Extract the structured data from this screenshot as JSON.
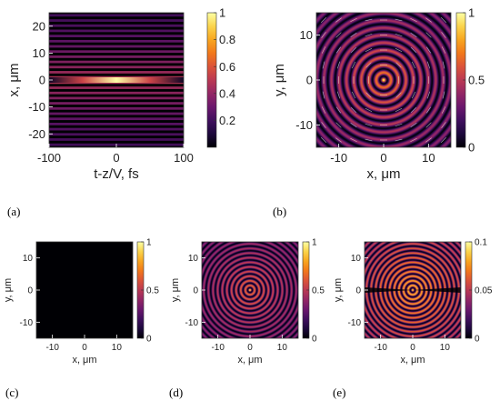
{
  "chart_data": [
    {
      "panel": "(a)",
      "type": "heatmap",
      "xlabel": "t-z/V, fs",
      "ylabel": "x, μm",
      "xlim": [
        -100,
        100
      ],
      "ylim": [
        -25,
        25
      ],
      "xticks": [
        "-100",
        "0",
        "100"
      ],
      "yticks": [
        "-20",
        "-10",
        "0",
        "10",
        "20"
      ],
      "colorbar": {
        "range": [
          0,
          1
        ],
        "ticks": [
          "0.2",
          "0.4",
          "0.6",
          "0.8",
          "1"
        ]
      },
      "colormap": "inferno"
    },
    {
      "panel": "(b)",
      "type": "heatmap",
      "xlabel": "x, μm",
      "ylabel": "y, μm",
      "xlim": [
        -15,
        15
      ],
      "ylim": [
        -15,
        15
      ],
      "xticks": [
        "-10",
        "0",
        "10"
      ],
      "yticks": [
        "-10",
        "0",
        "10"
      ],
      "colorbar": {
        "range": [
          0,
          1
        ],
        "ticks": [
          "0",
          "0.5",
          "1"
        ]
      },
      "colormap": "inferno",
      "overlay": "arrow field"
    },
    {
      "panel": "(c)",
      "type": "heatmap",
      "xlabel": "x, μm",
      "ylabel": "y, μm",
      "xlim": [
        -15,
        15
      ],
      "ylim": [
        -15,
        15
      ],
      "xticks": [
        "-10",
        "0",
        "10"
      ],
      "yticks": [
        "-10",
        "0",
        "10"
      ],
      "colorbar": {
        "range": [
          0,
          1
        ],
        "ticks": [
          "0",
          "0.5",
          "1"
        ]
      },
      "colormap": "inferno"
    },
    {
      "panel": "(d)",
      "type": "heatmap",
      "xlabel": "x, μm",
      "ylabel": "y, μm",
      "xlim": [
        -15,
        15
      ],
      "ylim": [
        -15,
        15
      ],
      "xticks": [
        "-10",
        "0",
        "10"
      ],
      "yticks": [
        "-10",
        "0",
        "10"
      ],
      "colorbar": {
        "range": [
          0,
          1
        ],
        "ticks": [
          "0",
          "0.5",
          "1"
        ]
      },
      "colormap": "inferno"
    },
    {
      "panel": "(e)",
      "type": "heatmap",
      "xlabel": "x, μm",
      "ylabel": "y, μm",
      "xlim": [
        -15,
        15
      ],
      "ylim": [
        -15,
        15
      ],
      "xticks": [
        "-10",
        "0",
        "10"
      ],
      "yticks": [
        "-10",
        "0",
        "10"
      ],
      "colorbar": {
        "range": [
          0,
          0.1
        ],
        "ticks": [
          "0",
          "0.05",
          "0.1"
        ]
      },
      "colormap": "inferno"
    }
  ]
}
